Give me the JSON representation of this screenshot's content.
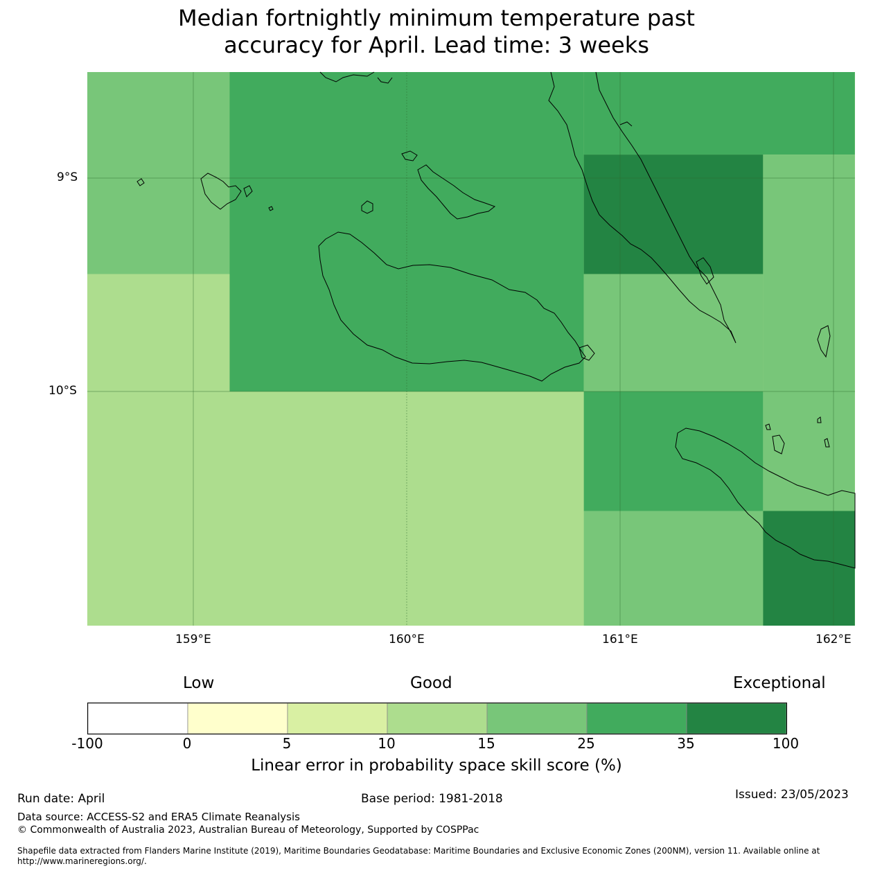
{
  "title_line1": "Median fortnightly minimum temperature past",
  "title_line2": "accuracy for April. Lead time: 3 weeks",
  "map": {
    "lon_ticks": [
      "159°E",
      "160°E",
      "161°E",
      "162°E"
    ],
    "lat_ticks": [
      "9°S",
      "10°S"
    ],
    "ocean_color": "#aedd8e",
    "skill_cells": [
      {
        "lon": [
          158.5,
          159.17
        ],
        "lat": [
          -8.5,
          -9.45
        ],
        "class": "15-25"
      },
      {
        "lon": [
          159.17,
          160.83
        ],
        "lat": [
          -8.5,
          -10.0
        ],
        "class": "25-35"
      },
      {
        "lon": [
          160.83,
          162.1
        ],
        "lat": [
          -8.5,
          -8.89
        ],
        "class": "25-35"
      },
      {
        "lon": [
          160.83,
          161.67
        ],
        "lat": [
          -8.89,
          -9.45
        ],
        "class": "35-100"
      },
      {
        "lon": [
          161.67,
          162.1
        ],
        "lat": [
          -8.89,
          -10.0
        ],
        "class": "15-25"
      },
      {
        "lon": [
          160.83,
          161.67
        ],
        "lat": [
          -9.45,
          -10.0
        ],
        "class": "15-25"
      },
      {
        "lon": [
          158.5,
          159.17
        ],
        "lat": [
          -9.45,
          -10.0
        ],
        "class": "10-15"
      },
      {
        "lon": [
          158.5,
          160.83
        ],
        "lat": [
          -10.0,
          -11.1
        ],
        "class": "10-15"
      },
      {
        "lon": [
          160.83,
          161.67
        ],
        "lat": [
          -10.0,
          -10.56
        ],
        "class": "25-35"
      },
      {
        "lon": [
          161.67,
          162.1
        ],
        "lat": [
          -10.0,
          -10.56
        ],
        "class": "15-25"
      },
      {
        "lon": [
          160.83,
          161.67
        ],
        "lat": [
          -10.56,
          -11.1
        ],
        "class": "15-25"
      },
      {
        "lon": [
          161.67,
          162.1
        ],
        "lat": [
          -10.56,
          -11.1
        ],
        "class": "35-100"
      }
    ]
  },
  "colorbar": {
    "label_low": "Low",
    "label_good": "Good",
    "label_exceptional": "Exceptional",
    "colors": [
      "#ffffff",
      "#ffffcc",
      "#d9f0a3",
      "#addd8e",
      "#78c679",
      "#41ab5d",
      "#238443"
    ],
    "ticks": [
      "-100",
      "0",
      "5",
      "10",
      "15",
      "25",
      "35",
      "100"
    ],
    "axis_label": "Linear error in probability space skill score (%)"
  },
  "footer": {
    "run_date": "Run date: April",
    "base_period": "Base period: 1981-2018",
    "issued": "Issued: 23/05/2023",
    "data_source": "Data source: ACCESS-S2 and ERA5 Climate Reanalysis",
    "copyright": "© Commonwealth of Australia 2023, Australian Bureau of Meteorology, Supported by COSPPac",
    "shapefile_line1": "Shapefile data extracted from Flanders Marine Institute (2019), Maritime Boundaries Geodatabase: Maritime Boundaries and Exclusive Economic Zones (200NM), version 11. Available online at",
    "shapefile_line2": "http://www.marineregions.org/."
  }
}
